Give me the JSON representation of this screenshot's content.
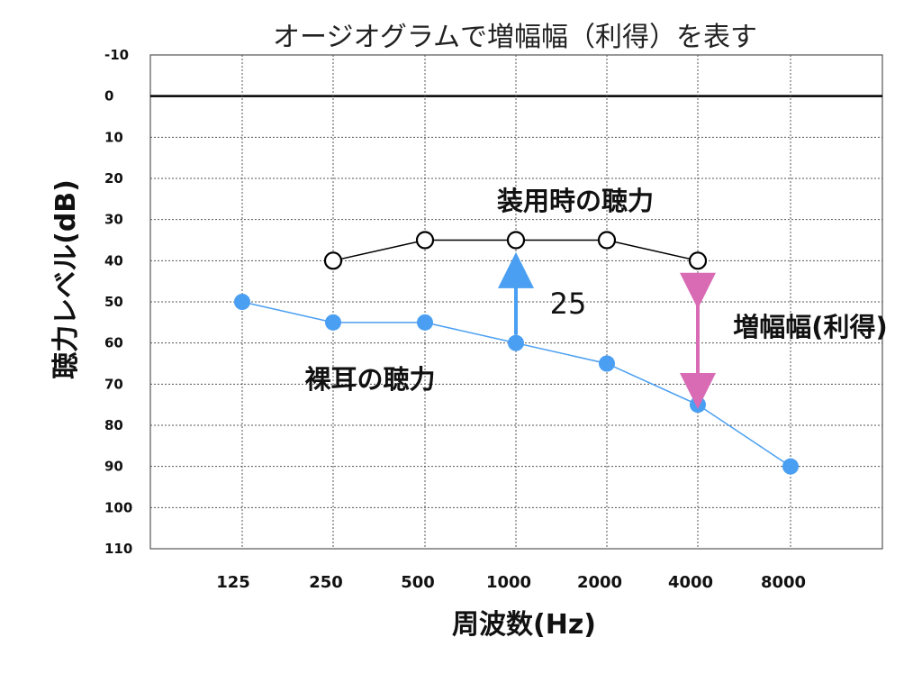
{
  "chart_data": {
    "type": "line",
    "title": "オージオグラムで増幅幅（利得）を表す",
    "xlabel": "周波数(Hz)",
    "ylabel": "聴力レベル(dB)",
    "categories": [
      "125",
      "250",
      "500",
      "1000",
      "2000",
      "4000",
      "8000"
    ],
    "y_ticks": [
      "-10",
      "0",
      "10",
      "20",
      "30",
      "40",
      "50",
      "60",
      "70",
      "80",
      "90",
      "100",
      "110"
    ],
    "ylim": [
      -10,
      110
    ],
    "y_inverted": true,
    "grid": true,
    "series": [
      {
        "label": "装用時の聴力",
        "color": "#000000",
        "marker": "open-circle",
        "values": [
          null,
          40,
          35,
          35,
          35,
          40,
          null
        ]
      },
      {
        "label": "裸耳の聴力",
        "color": "#4a9ff2",
        "marker": "filled-circle",
        "values": [
          50,
          55,
          55,
          60,
          65,
          75,
          90
        ]
      }
    ],
    "annotations": [
      {
        "text": "25",
        "category": "1000",
        "arrow_from": 58,
        "arrow_to": 41,
        "arrow_color": "#4a9ff2"
      },
      {
        "text": "増幅幅(利得)",
        "category": "4000",
        "arrow_from": 46,
        "arrow_to": 73,
        "arrow_color": "#d96bb5",
        "double_headed": true
      }
    ]
  }
}
